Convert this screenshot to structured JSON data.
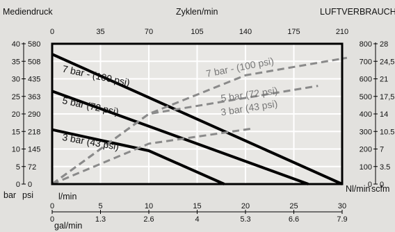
{
  "chart_data": {
    "type": "line",
    "headers": {
      "left": "Mediendruck",
      "center": "Zyklen/min",
      "right": "LUFTVERBRAUCH"
    },
    "axes": {
      "top": {
        "label": "Zyklen/min",
        "range": [
          0,
          210
        ],
        "ticks": [
          "0",
          "35",
          "70",
          "105",
          "140",
          "175",
          "210"
        ]
      },
      "bottom_primary": {
        "label": "l/min",
        "range": [
          0,
          30
        ],
        "ticks": [
          "0",
          "5",
          "10",
          "15",
          "20",
          "25",
          "30"
        ]
      },
      "bottom_secondary": {
        "label": "gal/min",
        "range": [
          0,
          7.9
        ],
        "ticks": [
          "0",
          "1.3",
          "2.6",
          "4",
          "5.3",
          "6.6",
          "7.9"
        ]
      },
      "left_bar": {
        "label": "bar",
        "range": [
          0,
          40
        ],
        "ticks": [
          "0",
          "5",
          "10",
          "15",
          "20",
          "25",
          "30",
          "35",
          "40"
        ]
      },
      "left_psi": {
        "label": "psi",
        "range": [
          0,
          580
        ],
        "ticks": [
          "0",
          "72",
          "145",
          "218",
          "290",
          "363",
          "435",
          "508",
          "580"
        ]
      },
      "right_nlmin": {
        "label": "Nl/min",
        "range": [
          0,
          800
        ],
        "ticks": [
          "0",
          "100",
          "200",
          "300",
          "400",
          "500",
          "600",
          "700",
          "800"
        ]
      },
      "right_scfm": {
        "label": "scfm",
        "range": [
          0,
          28
        ],
        "ticks": [
          "0",
          "3.5",
          "7",
          "10.5",
          "14",
          "17,5",
          "21",
          "24,5",
          "28"
        ]
      }
    },
    "grid": true,
    "series": [
      {
        "name": "7 bar - (100 psi)",
        "kind": "pressure",
        "style": "solid",
        "x_lmin": [
          0,
          30
        ],
        "y_bar": [
          37,
          0
        ]
      },
      {
        "name": "5 bar (72 psi)",
        "kind": "pressure",
        "style": "solid",
        "x_lmin": [
          0,
          26.5
        ],
        "y_bar": [
          26.5,
          0
        ]
      },
      {
        "name": "3 bar (43 psi)",
        "kind": "pressure",
        "style": "solid",
        "x_lmin": [
          0,
          10,
          17.8
        ],
        "y_bar": [
          15.5,
          9.5,
          0
        ]
      },
      {
        "name": "7 bar - (100 psi)",
        "kind": "air_consumption",
        "style": "dashed",
        "x_lmin": [
          0,
          10,
          20,
          30.5
        ],
        "y_nlmin": [
          0,
          400,
          620,
          720
        ]
      },
      {
        "name": "5 bar (72 psi)",
        "kind": "air_consumption",
        "style": "dashed",
        "x_lmin": [
          0,
          10,
          27.5
        ],
        "y_nlmin": [
          0,
          400,
          560
        ]
      },
      {
        "name": "3 bar (43 psi)",
        "kind": "air_consumption",
        "style": "dashed",
        "x_lmin": [
          0,
          10,
          20.5
        ],
        "y_nlmin": [
          0,
          230,
          315
        ]
      }
    ],
    "labels": [
      {
        "text": "7 bar - (100 psi)",
        "style": "solid",
        "x_lmin": 1.0,
        "y_bar": 32.0,
        "angle_deg": 12
      },
      {
        "text": "5 bar (72 psi)",
        "style": "solid",
        "x_lmin": 1.0,
        "y_bar": 23.0,
        "angle_deg": 12
      },
      {
        "text": "3 bar (43 psi)",
        "style": "solid",
        "x_lmin": 1.0,
        "y_bar": 12.5,
        "angle_deg": 10
      },
      {
        "text": "7 bar - (100 psi)",
        "style": "dashed",
        "x_lmin": 16.0,
        "y_bar": 30.5,
        "angle_deg": -11
      },
      {
        "text": "5 bar (72 psi)",
        "style": "dashed",
        "x_lmin": 17.5,
        "y_bar": 23.5,
        "angle_deg": -8
      },
      {
        "text": "3 bar (43 psi)",
        "style": "dashed",
        "x_lmin": 17.5,
        "y_bar": 19.5,
        "angle_deg": -9
      }
    ]
  }
}
